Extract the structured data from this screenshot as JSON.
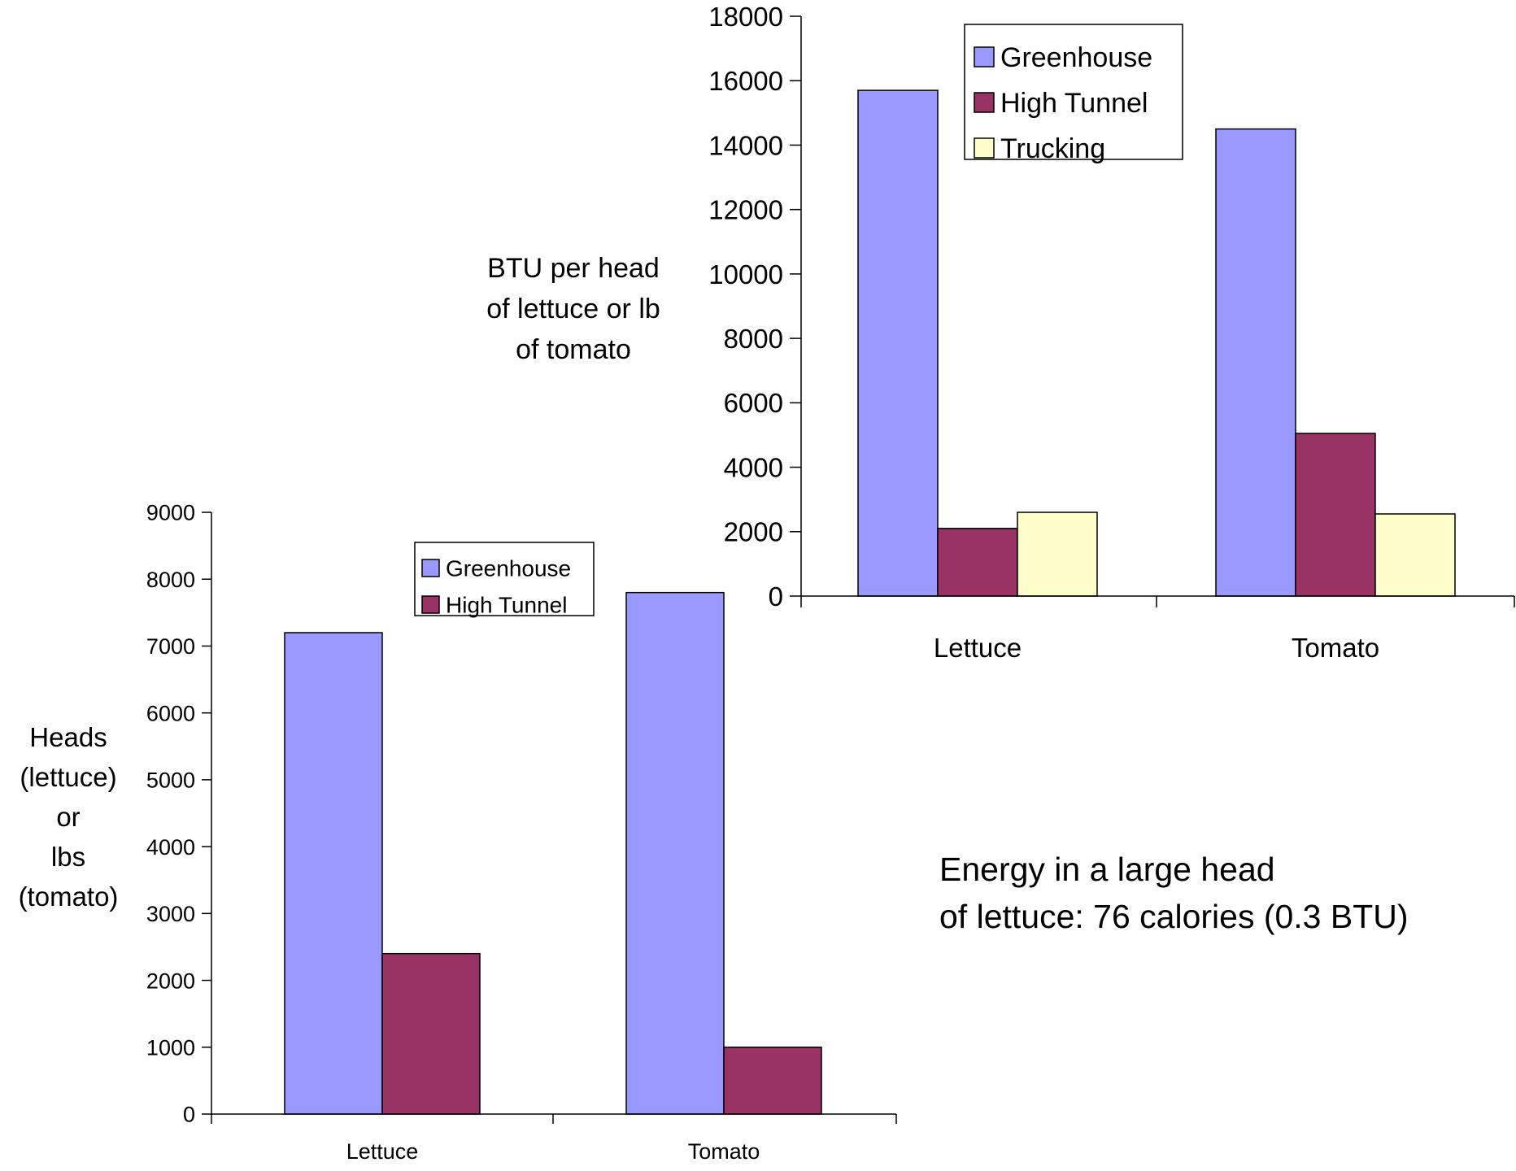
{
  "chart_data": [
    {
      "type": "bar",
      "title": "",
      "ylabel": "BTU per head of lettuce or lb of tomato",
      "xlabel": "",
      "categories": [
        "Lettuce",
        "Tomato"
      ],
      "series": [
        {
          "name": "Greenhouse",
          "values": [
            15700,
            14500
          ],
          "color": "#9999ff"
        },
        {
          "name": "High Tunnel",
          "values": [
            2100,
            5050
          ],
          "color": "#993366"
        },
        {
          "name": "Trucking",
          "values": [
            2600,
            2550
          ],
          "color": "#ffffcc"
        }
      ],
      "ylim": [
        0,
        18000
      ],
      "yticks": [
        "0",
        "2000",
        "4000",
        "6000",
        "8000",
        "10000",
        "12000",
        "14000",
        "16000",
        "18000"
      ],
      "grid": false,
      "legend": "top-right"
    },
    {
      "type": "bar",
      "title": "",
      "ylabel": "Heads (lettuce) or lbs (tomato)",
      "xlabel": "",
      "categories": [
        "Lettuce",
        "Tomato"
      ],
      "series": [
        {
          "name": "Greenhouse",
          "values": [
            7200,
            7800
          ],
          "color": "#9999ff"
        },
        {
          "name": "High Tunnel",
          "values": [
            2400,
            1000
          ],
          "color": "#993366"
        }
      ],
      "ylim": [
        0,
        9000
      ],
      "yticks": [
        "0",
        "1000",
        "2000",
        "3000",
        "4000",
        "5000",
        "6000",
        "7000",
        "8000",
        "9000"
      ],
      "grid": false,
      "legend": "top-right"
    }
  ],
  "labels": {
    "top_ylabel_lines": [
      "BTU per head",
      "of lettuce or lb",
      "of tomato"
    ],
    "bottom_ylabel_lines": [
      "Heads",
      "(lettuce)",
      "or",
      "lbs",
      "(tomato)"
    ]
  },
  "annotation": {
    "line1": "Energy in a large head",
    "line2": "of lettuce: 76 calories (0.3 BTU)"
  }
}
